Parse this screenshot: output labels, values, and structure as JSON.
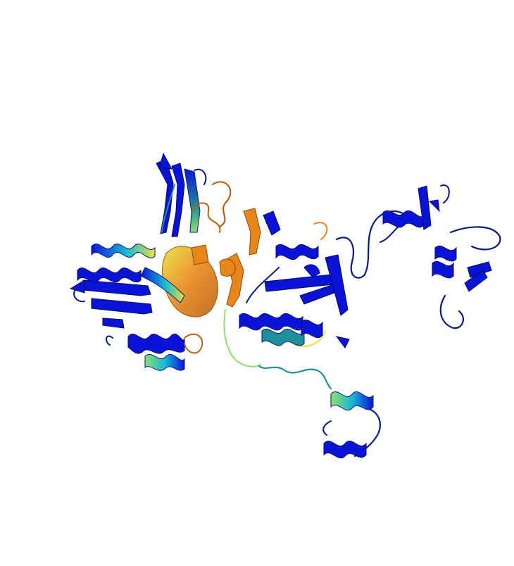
{
  "scene": {
    "background": "#ffffff",
    "subject": "protein-cartoon-rendering",
    "palette": {
      "low_confidence": "#0a14d8",
      "dark_loop": "#0b1a7a",
      "mid_cyan": "#18b8d8",
      "teal": "#1f8f9a",
      "green": "#8fe06a",
      "yellow": "#e8e23a",
      "orange": "#e8861a",
      "dark_orange": "#b8620f"
    }
  }
}
